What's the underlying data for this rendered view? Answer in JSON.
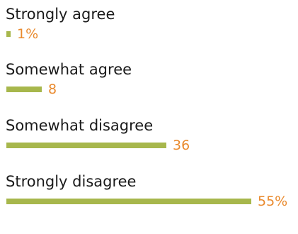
{
  "chart_data": {
    "type": "bar",
    "orientation": "horizontal",
    "categories": [
      "Strongly agree",
      "Somewhat agree",
      "Somewhat disagree",
      "Strongly disagree"
    ],
    "values": [
      1,
      8,
      36,
      55
    ],
    "value_labels": [
      "1%",
      "8",
      "36",
      "55%"
    ],
    "unit": "%",
    "title": "",
    "xlabel": "",
    "ylabel": "",
    "xlim": [
      0,
      55
    ],
    "grid": false,
    "legend": "none",
    "colors": {
      "bar": "#a7b74c",
      "value_text": "#e98a2e",
      "label_text": "#1a1a1a"
    }
  }
}
